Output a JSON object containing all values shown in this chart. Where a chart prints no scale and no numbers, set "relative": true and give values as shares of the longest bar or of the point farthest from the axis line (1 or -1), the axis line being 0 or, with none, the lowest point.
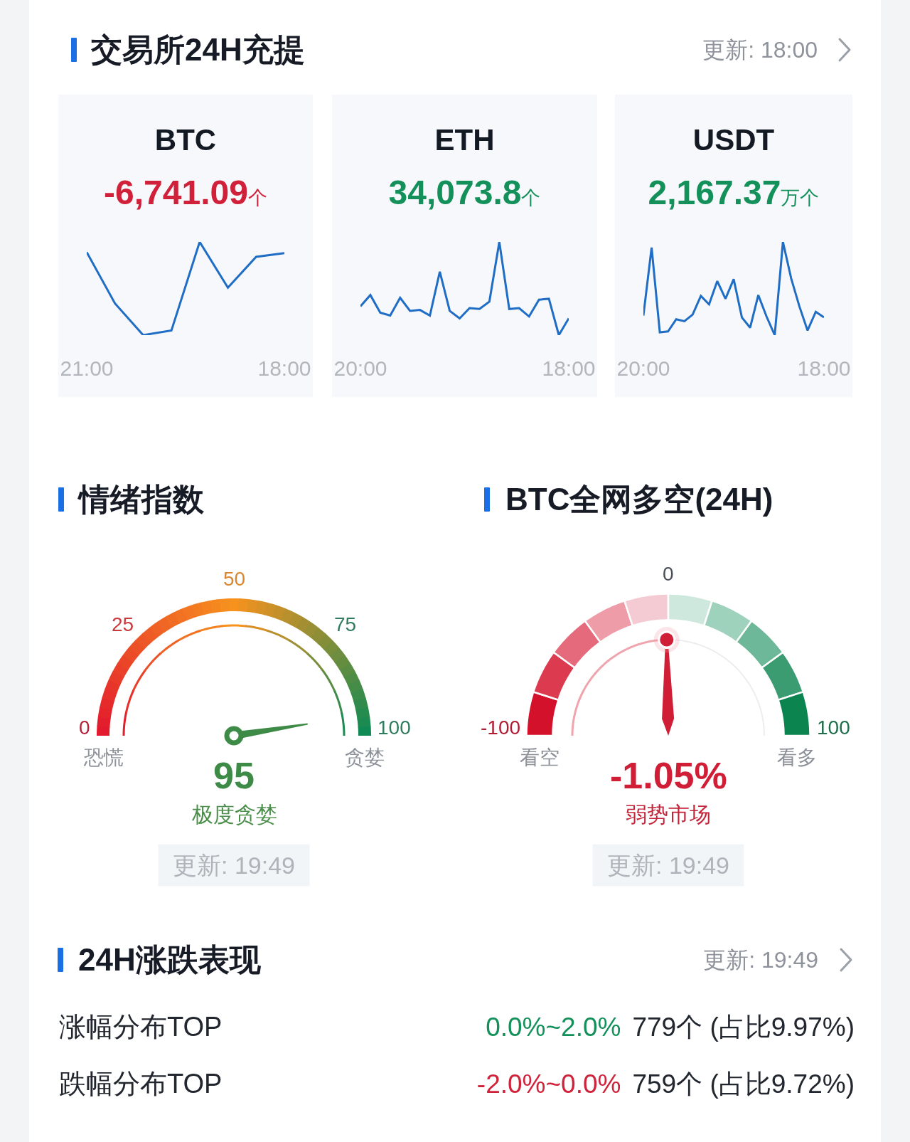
{
  "chart_data": [
    {
      "type": "other",
      "title": "交易所24H充提",
      "annotations": [
        "更新: 18:00"
      ]
    },
    {
      "type": "line",
      "title": "BTC",
      "subtitle": "-6,741.09个",
      "categories": [
        "21:00",
        null,
        null,
        null,
        null,
        null,
        null,
        "18:00"
      ],
      "values": [
        0.89,
        0.34,
        0,
        0.05,
        1,
        0.51,
        0.84,
        0.88
      ],
      "color": "#1f6dc4",
      "relative": true
    },
    {
      "type": "line",
      "title": "ETH",
      "subtitle": "34,073.8个",
      "categories": [
        "20:00",
        null,
        null,
        null,
        null,
        null,
        null,
        null,
        null,
        null,
        null,
        null,
        null,
        null,
        null,
        null,
        null,
        null,
        null,
        null,
        null,
        "18:00"
      ],
      "values": [
        0.31,
        0.43,
        0.24,
        0.21,
        0.4,
        0.26,
        0.27,
        0.21,
        0.68,
        0.26,
        0.18,
        0.29,
        0.28,
        0.36,
        1,
        0.28,
        0.29,
        0.2,
        0.38,
        0.39,
        0,
        0.18
      ],
      "color": "#1f6dc4",
      "relative": true
    },
    {
      "type": "line",
      "title": "USDT",
      "subtitle": "2,167.37万个",
      "categories": [
        "20:00",
        null,
        null,
        null,
        null,
        null,
        null,
        null,
        null,
        null,
        null,
        null,
        null,
        null,
        null,
        null,
        null,
        null,
        null,
        null,
        null,
        null,
        "18:00"
      ],
      "values": [
        0.21,
        0.94,
        0.03,
        0.04,
        0.17,
        0.15,
        0.22,
        0.42,
        0.33,
        0.58,
        0.39,
        0.6,
        0.19,
        0.08,
        0.43,
        0.2,
        0,
        1,
        0.61,
        0.31,
        0.05,
        0.25,
        0.19
      ],
      "color": "#1f6dc4",
      "relative": true
    },
    {
      "type": "other",
      "title": "情绪指数",
      "values": [
        95
      ],
      "data_labels": true,
      "color": "#3d8b47",
      "annotations": [
        "0",
        "25",
        "50",
        "75",
        "100",
        "恐慌",
        "贪婪",
        "极度贪婪",
        "更新: 19:49"
      ]
    },
    {
      "type": "other",
      "title": "BTC全网多空(24H)",
      "values": [
        -1.05
      ],
      "value_labels": [
        "-1.05%"
      ],
      "color": "#cf1e36",
      "annotations": [
        "-100",
        "0",
        "100",
        "看空",
        "看多",
        "弱势市场",
        "更新: 19:49"
      ]
    },
    {
      "type": "other",
      "title": "24H涨跌表现",
      "annotations": [
        "更新: 19:49",
        "涨幅分布TOP",
        "0.0%~2.0%",
        "779个 (占比9.97%)",
        "跌幅分布TOP",
        "-2.0%~0.0%",
        "759个 (占比9.72%)"
      ]
    }
  ]
}
